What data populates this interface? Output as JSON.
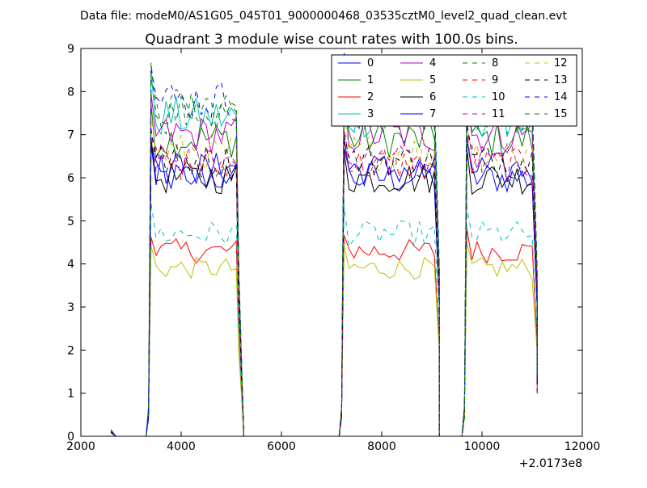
{
  "figure": {
    "suptitle": "Data file: modeM0/AS1G05_045T01_9000000468_03535cztM0_level2_quad_clean.evt"
  },
  "chart_data": {
    "type": "line",
    "title": "Quadrant 3 module wise count rates with 100.0s bins.",
    "xlabel": "",
    "ylabel": "",
    "x_offset_label": "+2.0173e8",
    "xlim": [
      2000,
      12000
    ],
    "ylim": [
      0,
      9
    ],
    "xticks": [
      2000,
      4000,
      6000,
      8000,
      10000,
      12000
    ],
    "xtick_labels": [
      "2000",
      "4000",
      "6000",
      "8000",
      "10000",
      "12000"
    ],
    "yticks": [
      0,
      1,
      2,
      3,
      4,
      5,
      6,
      7,
      8,
      9
    ],
    "ytick_labels": [
      "0",
      "1",
      "2",
      "3",
      "4",
      "5",
      "6",
      "7",
      "8",
      "9"
    ],
    "grid": false,
    "legend_position": "top-right",
    "legend_columns": 4,
    "segments": [
      {
        "start": 3400,
        "end": 5100
      },
      {
        "start": 7250,
        "end": 9100
      },
      {
        "start": 9700,
        "end": 11050
      }
    ],
    "series": [
      {
        "name": "0",
        "color": "#0000ff",
        "dash": "solid",
        "level": 6.0
      },
      {
        "name": "1",
        "color": "#008000",
        "dash": "solid",
        "level": 6.9
      },
      {
        "name": "2",
        "color": "#ff0000",
        "dash": "solid",
        "level": 4.3
      },
      {
        "name": "3",
        "color": "#00bfbf",
        "dash": "solid",
        "level": 7.4
      },
      {
        "name": "4",
        "color": "#bf00bf",
        "dash": "solid",
        "level": 7.0
      },
      {
        "name": "5",
        "color": "#bfbf00",
        "dash": "solid",
        "level": 3.9
      },
      {
        "name": "6",
        "color": "#000000",
        "dash": "solid",
        "level": 6.0
      },
      {
        "name": "7",
        "color": "#0000ff",
        "dash": "solid",
        "level": 6.2
      },
      {
        "name": "8",
        "color": "#008000",
        "dash": "dashed",
        "level": 7.5
      },
      {
        "name": "9",
        "color": "#ff0000",
        "dash": "dashed",
        "level": 6.3
      },
      {
        "name": "10",
        "color": "#00bfbf",
        "dash": "dashed",
        "level": 4.7
      },
      {
        "name": "11",
        "color": "#bf00bf",
        "dash": "dashed",
        "level": 6.4
      },
      {
        "name": "12",
        "color": "#bfbf00",
        "dash": "dashed",
        "level": 6.6
      },
      {
        "name": "13",
        "color": "#000000",
        "dash": "dashed",
        "level": 6.4
      },
      {
        "name": "14",
        "color": "#0000ff",
        "dash": "dashed",
        "level": 7.8
      },
      {
        "name": "15",
        "color": "#008000",
        "dash": "dashed",
        "level": 7.6
      }
    ]
  }
}
